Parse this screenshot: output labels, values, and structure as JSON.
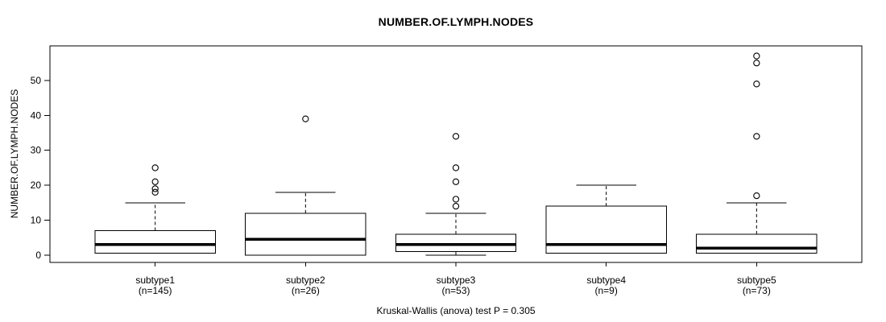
{
  "title": "NUMBER.OF.LYMPH.NODES",
  "caption": "Kruskal-Wallis (anova) test P = 0.305",
  "chart_data": {
    "type": "boxplot",
    "title": "NUMBER.OF.LYMPH.NODES",
    "ylabel": "NUMBER.OF.LYMPH.NODES",
    "xlabel": "",
    "footer": "Kruskal-Wallis (anova) test P = 0.305",
    "ylim": [
      -2.1,
      59.9
    ],
    "yticks": [
      0,
      10,
      20,
      30,
      40,
      50
    ],
    "grid": false,
    "legend": "none",
    "colors": {
      "stroke": "#000000",
      "box_fill": "#ffffff",
      "background": "#ffffff"
    },
    "groups": [
      {
        "label": "subtype1",
        "sublabel": "(n=145)",
        "n": 145,
        "whislo": 0.5,
        "q1": 0.5,
        "median": 3,
        "q3": 7,
        "whishi": 15,
        "outliers": [
          18,
          19,
          21,
          25
        ]
      },
      {
        "label": "subtype2",
        "sublabel": "(n=26)",
        "n": 26,
        "whislo": 0,
        "q1": 0,
        "median": 4.5,
        "q3": 12,
        "whishi": 18,
        "outliers": [
          39
        ]
      },
      {
        "label": "subtype3",
        "sublabel": "(n=53)",
        "n": 53,
        "whislo": 0,
        "q1": 1,
        "median": 3,
        "q3": 6,
        "whishi": 12,
        "outliers": [
          14,
          16,
          21,
          25,
          34
        ]
      },
      {
        "label": "subtype4",
        "sublabel": "(n=9)",
        "n": 9,
        "whislo": 0.5,
        "q1": 0.5,
        "median": 3,
        "q3": 14,
        "whishi": 20,
        "outliers": []
      },
      {
        "label": "subtype5",
        "sublabel": "(n=73)",
        "n": 73,
        "whislo": 0.5,
        "q1": 0.5,
        "median": 2,
        "q3": 6,
        "whishi": 15,
        "outliers": [
          17,
          34,
          49,
          55,
          57
        ]
      }
    ]
  }
}
